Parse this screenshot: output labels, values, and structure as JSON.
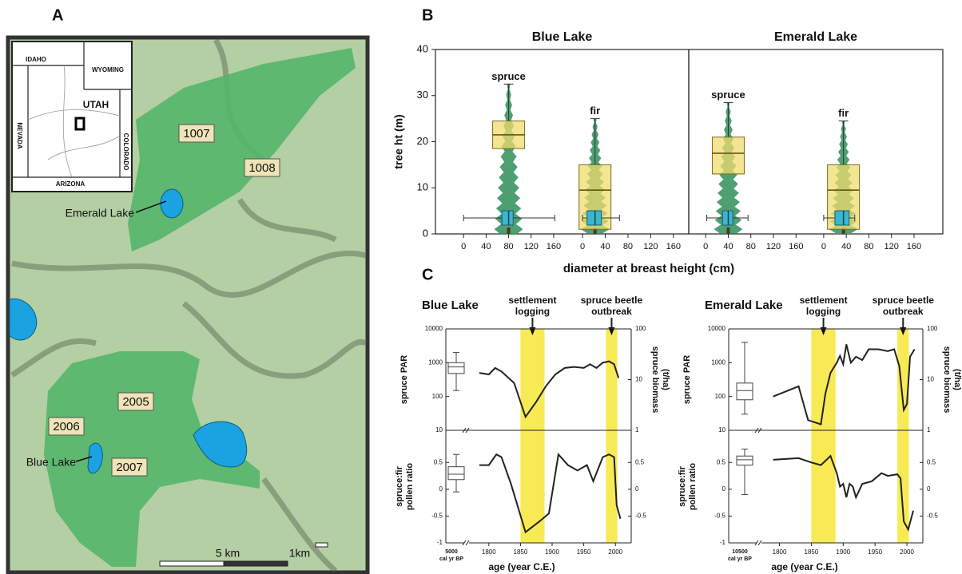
{
  "panel_labels": [
    "A",
    "B",
    "C"
  ],
  "map": {
    "inset_labels": [
      "IDAHO",
      "WYOMING",
      "UTAH",
      "NEVADA",
      "COLORADO",
      "ARIZONA"
    ],
    "plot_labels": [
      "1007",
      "1008",
      "2005",
      "2006",
      "2007"
    ],
    "lake_labels": [
      "Emerald Lake",
      "Blue Lake"
    ],
    "scale_labels": [
      "5 km",
      "1km"
    ]
  },
  "chart_data": [
    {
      "type": "box",
      "title": "Blue Lake",
      "ylabel": "tree ht (m)",
      "xlabel": "diameter at breast height (cm)",
      "ylim": [
        0,
        40
      ],
      "yticks": [
        0,
        10,
        20,
        30,
        40
      ],
      "height_color": "#f0dc6e",
      "dbh_color": "#3ab7cf",
      "tree_color": "#2f8f5a",
      "groups": [
        {
          "name": "spruce",
          "xlim": [
            -50,
            175
          ],
          "xticks": [
            0,
            40,
            80,
            120,
            160
          ],
          "height": {
            "q1": 18.5,
            "median": 21.5,
            "q3": 24.5,
            "max": 32.5
          },
          "dbh": {
            "min": 0,
            "q1": 68,
            "median": 80,
            "q3": 88,
            "max": 162
          }
        },
        {
          "name": "fir",
          "xlim": [
            -36,
            187
          ],
          "xticks": [
            0,
            40,
            80,
            120,
            160
          ],
          "height": {
            "q1": 1,
            "median": 9.5,
            "q3": 15,
            "max": 25
          },
          "dbh": {
            "min": 0,
            "q1": 8,
            "median": 22,
            "q3": 33,
            "max": 65
          }
        }
      ]
    },
    {
      "type": "box",
      "title": "Emerald Lake",
      "ylim": [
        0,
        40
      ],
      "height_color": "#f0dc6e",
      "dbh_color": "#3ab7cf",
      "tree_color": "#2f8f5a",
      "groups": [
        {
          "name": "spruce",
          "xlim": [
            -30,
            195
          ],
          "xticks": [
            0,
            40,
            80,
            120,
            160
          ],
          "height": {
            "q1": 13,
            "median": 17.5,
            "q3": 21,
            "max": 28.5
          },
          "dbh": {
            "min": 2,
            "q1": 30,
            "median": 40,
            "q3": 48,
            "max": 75
          }
        },
        {
          "name": "fir",
          "xlim": [
            -14,
            211
          ],
          "xticks": [
            0,
            40,
            80,
            120,
            160
          ],
          "height": {
            "q1": 1,
            "median": 9.5,
            "q3": 15,
            "max": 24.5
          },
          "dbh": {
            "min": 0,
            "q1": 20,
            "median": 35,
            "q3": 45,
            "max": 55
          }
        }
      ]
    },
    {
      "type": "timeseries",
      "title": "Blue Lake",
      "xlabel": "age (year C.E.)",
      "baseline_label": [
        "5000",
        "cal yr BP"
      ],
      "xlim": [
        1775,
        2025
      ],
      "xticks": [
        1800,
        1850,
        1900,
        1950,
        2000
      ],
      "band_color": "#f7ea55",
      "line_color": "#222222",
      "bands": [
        {
          "range": [
            1850,
            1888
          ],
          "label": [
            "settlement",
            "logging"
          ]
        },
        {
          "range": [
            1985,
            2003
          ],
          "label": [
            "spruce beetle",
            "outbreak"
          ]
        }
      ],
      "panels": [
        {
          "ylabel": [
            "spruce PAR"
          ],
          "y2label": [
            "spruce biomass",
            "(t/ha)"
          ],
          "log_scale": true,
          "ylim": [
            10,
            10000
          ],
          "yticks": [
            10,
            100,
            1000,
            10000
          ],
          "y2lim": [
            1,
            100
          ],
          "y2ticks": [
            1,
            10,
            100
          ],
          "x": [
            1785,
            1800,
            1810,
            1820,
            1840,
            1858,
            1875,
            1890,
            1905,
            1920,
            1935,
            1950,
            1960,
            1970,
            1980,
            1990,
            1998,
            2005
          ],
          "values": [
            500,
            450,
            700,
            550,
            250,
            25,
            70,
            200,
            450,
            700,
            750,
            700,
            900,
            700,
            1000,
            1100,
            900,
            350
          ],
          "box": {
            "min": 150,
            "q1": 480,
            "median": 750,
            "q3": 1000,
            "max": 2000
          }
        },
        {
          "ylabel": [
            "spruce:fir",
            "pollen ratio"
          ],
          "log_scale": false,
          "ylim": [
            -1,
            1.1
          ],
          "yticks": [
            -1,
            -0.5,
            0,
            0.5
          ],
          "y2lim": [
            -1,
            1.1
          ],
          "y2ticks": [
            -0.5,
            0,
            0.5
          ],
          "x": [
            1785,
            1800,
            1812,
            1820,
            1835,
            1858,
            1880,
            1895,
            1910,
            1925,
            1940,
            1955,
            1965,
            1980,
            1990,
            1998,
            2002,
            2008
          ],
          "values": [
            0.45,
            0.45,
            0.65,
            0.6,
            0.1,
            -0.8,
            -0.6,
            -0.45,
            0.65,
            0.45,
            0.35,
            0.45,
            0.15,
            0.6,
            0.65,
            0.6,
            -0.3,
            -0.55
          ],
          "box": {
            "min": -0.05,
            "q1": 0.18,
            "median": 0.28,
            "q3": 0.42,
            "max": 0.65
          }
        }
      ]
    },
    {
      "type": "timeseries",
      "title": "Emerald Lake",
      "xlabel": "age (year C.E.)",
      "baseline_label": [
        "10500",
        "cal yr BP"
      ],
      "xlim": [
        1778,
        2025
      ],
      "xticks": [
        1800,
        1850,
        1900,
        1950,
        2000
      ],
      "band_color": "#f7ea55",
      "line_color": "#222222",
      "bands": [
        {
          "range": [
            1850,
            1888
          ],
          "label": [
            "settlement",
            "logging"
          ]
        },
        {
          "range": [
            1985,
            2003
          ],
          "label": [
            "spruce beetle",
            "outbreak"
          ]
        }
      ],
      "panels": [
        {
          "ylabel": [
            "spruce PAR"
          ],
          "y2label": [
            "spruce biomass",
            "(t/ha)"
          ],
          "log_scale": true,
          "ylim": [
            10,
            10000
          ],
          "yticks": [
            10,
            100,
            1000,
            10000
          ],
          "y2lim": [
            1,
            100
          ],
          "y2ticks": [
            1,
            10,
            100
          ],
          "x": [
            1790,
            1830,
            1845,
            1865,
            1872,
            1880,
            1890,
            1895,
            1900,
            1905,
            1912,
            1920,
            1930,
            1940,
            1955,
            1970,
            1980,
            1988,
            1995,
            2000,
            2005,
            2012
          ],
          "values": [
            100,
            200,
            20,
            15,
            120,
            500,
            1000,
            1600,
            900,
            3500,
            1000,
            1500,
            1200,
            2500,
            2500,
            2200,
            2500,
            800,
            40,
            60,
            1500,
            2500
          ],
          "box": {
            "min": 30,
            "q1": 80,
            "median": 150,
            "q3": 250,
            "max": 4000
          }
        },
        {
          "ylabel": [
            "spruce:fir",
            "pollen ratio"
          ],
          "log_scale": false,
          "ylim": [
            -1,
            1.1
          ],
          "yticks": [
            -1,
            -0.5,
            0,
            0.5
          ],
          "y2lim": [
            -1,
            1.1
          ],
          "y2ticks": [
            -0.5,
            0,
            0.5
          ],
          "x": [
            1790,
            1830,
            1850,
            1865,
            1880,
            1890,
            1895,
            1900,
            1905,
            1910,
            1915,
            1920,
            1930,
            1945,
            1960,
            1970,
            1985,
            1990,
            1995,
            2002,
            2010
          ],
          "values": [
            0.55,
            0.58,
            0.5,
            0.45,
            0.62,
            0.3,
            0.05,
            0.1,
            -0.15,
            0.1,
            0.05,
            -0.15,
            0.1,
            0.15,
            0.3,
            0.25,
            0.28,
            0.2,
            -0.6,
            -0.75,
            -0.4
          ],
          "box": {
            "min": -0.1,
            "q1": 0.45,
            "median": 0.55,
            "q3": 0.62,
            "max": 0.75
          }
        }
      ]
    }
  ]
}
